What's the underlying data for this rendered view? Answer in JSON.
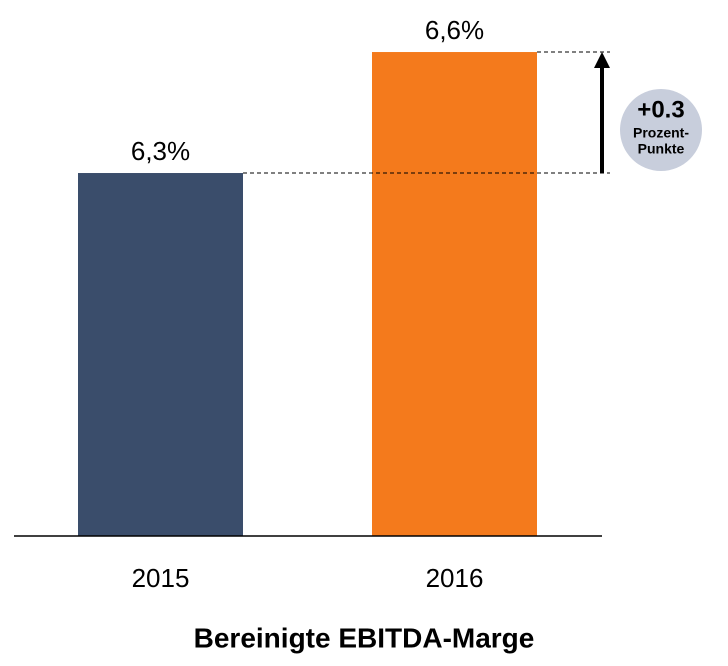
{
  "chart_data": {
    "type": "bar",
    "title": "Bereinigte EBITDA-Marge",
    "categories": [
      "2015",
      "2016"
    ],
    "values": [
      6.3,
      6.6
    ],
    "value_labels": [
      "6,3%",
      "6,6%"
    ],
    "colors": [
      "#3a4d6b",
      "#f47a1c"
    ],
    "ylim": [
      5.4,
      6.7
    ],
    "annotation": {
      "label": "+0.3",
      "text": [
        "Prozent-",
        "Punkte"
      ]
    }
  }
}
